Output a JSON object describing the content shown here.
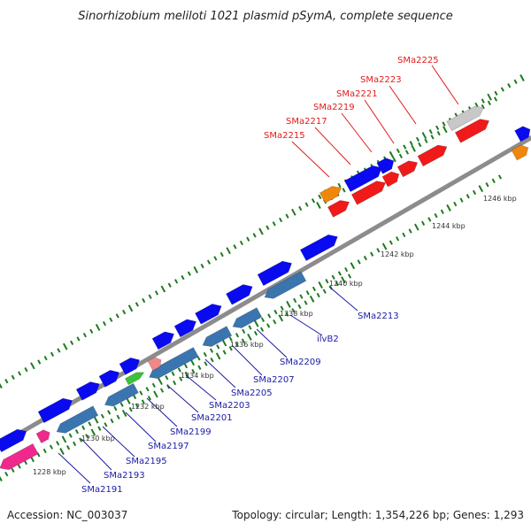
{
  "title": "Sinorhizobium meliloti 1021 plasmid pSymA, complete sequence",
  "footer": {
    "accession": "Accession: NC_003037",
    "summary": "Topology: circular; Length: 1,354,226 bp; Genes: 1,293"
  },
  "colors": {
    "backbone": "#8c8c8c",
    "tick": "#1e7a1e",
    "forward_gene": "#0a0af0",
    "reverse_gene_blue": "#3a75b0",
    "red_gene": "#f01a1a",
    "orange_gene": "#f0860a",
    "gray_gene": "#c8c8c8",
    "pink_gene": "#f0288c",
    "light_red_gene": "#f08888",
    "green_gene": "#3ac23a",
    "label_red": "#e21b1b",
    "label_blue": "#1a1aa8"
  },
  "scale_labels": [
    "1228 kbp",
    "1230 kbp",
    "1232 kbp",
    "1234 kbp",
    "1236 kbp",
    "1238 kbp",
    "1240 kbp",
    "1242 kbp",
    "1244 kbp",
    "1246 kbp"
  ],
  "gene_labels_top": [
    "SMa2215",
    "SMa2217",
    "SMa2219",
    "SMa2221",
    "SMa2223",
    "SMa2225"
  ],
  "gene_labels_bottom": [
    "SMa2191",
    "SMa2193",
    "SMa2195",
    "SMa2197",
    "SMa2199",
    "SMa2201",
    "SMa2203",
    "SMa2205",
    "SMa2207",
    "SMa2209",
    "ilvB2",
    "SMa2213"
  ]
}
